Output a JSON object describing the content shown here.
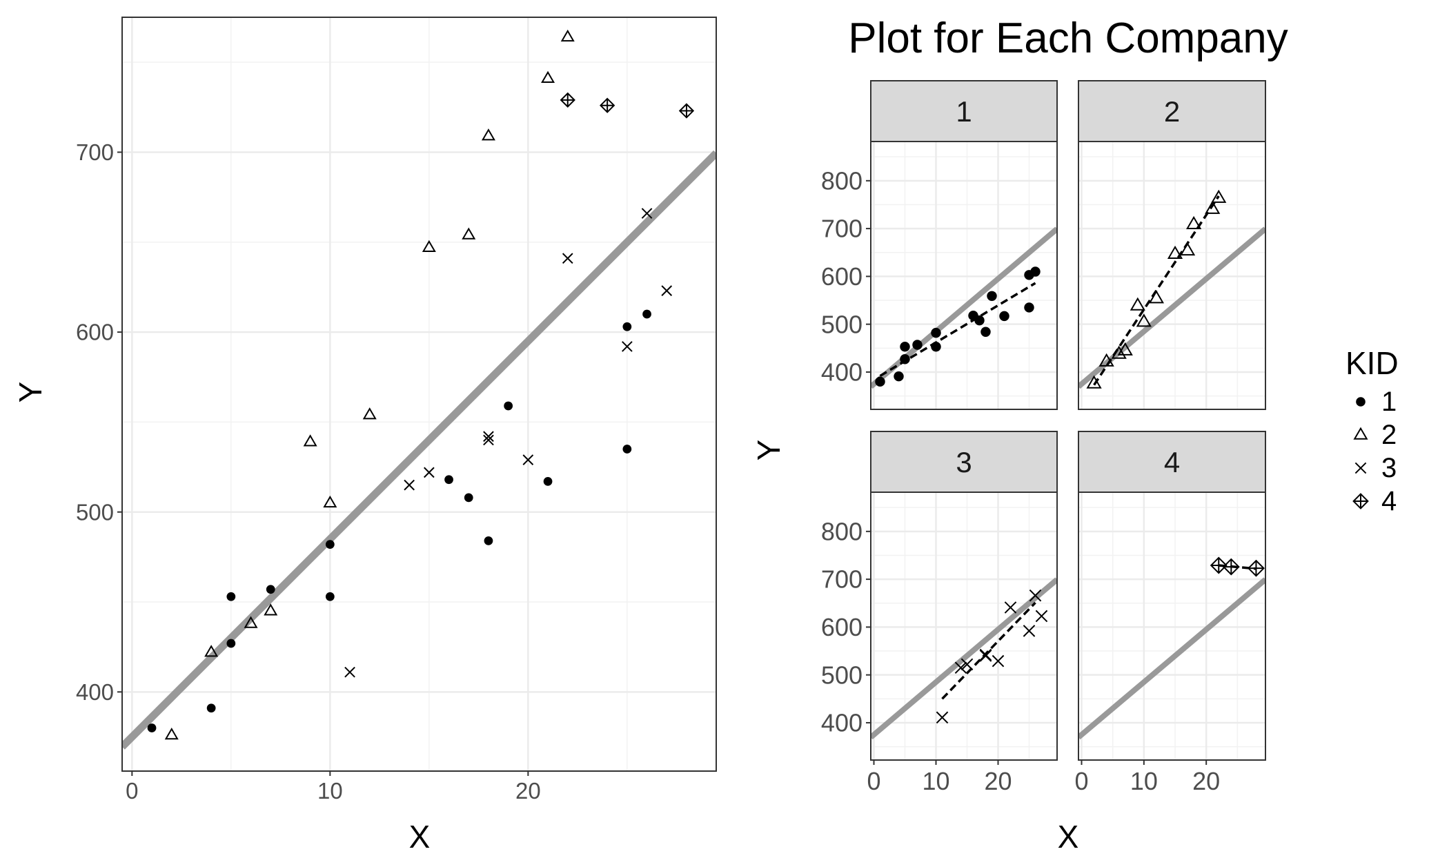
{
  "chart_data": [
    {
      "type": "scatter",
      "title": "",
      "xlabel": "X",
      "ylabel": "Y",
      "xlim": [
        -0.5,
        29.5
      ],
      "ylim": [
        356,
        775
      ],
      "x_ticks": [
        0,
        10,
        20
      ],
      "y_ticks": [
        400,
        500,
        600,
        700
      ],
      "grid": true,
      "reference_line": {
        "intercept": 375,
        "slope": 11,
        "color": "#999999"
      },
      "series": [
        {
          "name": "1",
          "marker": "circle",
          "points": [
            [
              1,
              380
            ],
            [
              4,
              391
            ],
            [
              5,
              427
            ],
            [
              5,
              453
            ],
            [
              7,
              457
            ],
            [
              10,
              453
            ],
            [
              10,
              482
            ],
            [
              16,
              518
            ],
            [
              17,
              508
            ],
            [
              18,
              484
            ],
            [
              19,
              559
            ],
            [
              21,
              517
            ],
            [
              25,
              535
            ],
            [
              25,
              603
            ],
            [
              26,
              610
            ]
          ]
        },
        {
          "name": "2",
          "marker": "triangle",
          "points": [
            [
              2,
              376
            ],
            [
              4,
              422
            ],
            [
              6,
              438
            ],
            [
              7,
              445
            ],
            [
              9,
              539
            ],
            [
              10,
              505
            ],
            [
              12,
              554
            ],
            [
              15,
              647
            ],
            [
              17,
              654
            ],
            [
              18,
              709
            ],
            [
              21,
              741
            ],
            [
              22,
              764
            ]
          ]
        },
        {
          "name": "3",
          "marker": "x",
          "points": [
            [
              11,
              411
            ],
            [
              14,
              515
            ],
            [
              15,
              522
            ],
            [
              18,
              540
            ],
            [
              18,
              542
            ],
            [
              20,
              529
            ],
            [
              22,
              641
            ],
            [
              25,
              592
            ],
            [
              26,
              666
            ],
            [
              27,
              623
            ]
          ]
        },
        {
          "name": "4",
          "marker": "crossed-diamond",
          "points": [
            [
              22,
              729
            ],
            [
              24,
              726
            ],
            [
              28,
              723
            ]
          ]
        }
      ]
    },
    {
      "type": "scatter",
      "title": "Plot for Each Company",
      "xlabel": "X",
      "ylabel": "Y",
      "xlim": [
        -0.5,
        29.5
      ],
      "ylim": [
        322,
        882
      ],
      "x_ticks": [
        0,
        10,
        20
      ],
      "y_ticks": [
        400,
        500,
        600,
        700,
        800
      ],
      "grid": true,
      "facets": [
        {
          "label": "1",
          "marker": "circle",
          "fit_line": {
            "x": [
              1,
              26
            ],
            "y": [
              392,
              586
            ]
          },
          "points": [
            [
              1,
              380
            ],
            [
              4,
              391
            ],
            [
              5,
              427
            ],
            [
              5,
              453
            ],
            [
              7,
              457
            ],
            [
              10,
              453
            ],
            [
              10,
              482
            ],
            [
              16,
              518
            ],
            [
              17,
              508
            ],
            [
              18,
              484
            ],
            [
              19,
              559
            ],
            [
              21,
              517
            ],
            [
              25,
              535
            ],
            [
              25,
              603
            ],
            [
              26,
              610
            ]
          ]
        },
        {
          "label": "2",
          "marker": "triangle",
          "fit_line": {
            "x": [
              2,
              22
            ],
            "y": [
              373,
              768
            ]
          },
          "points": [
            [
              2,
              376
            ],
            [
              4,
              422
            ],
            [
              6,
              438
            ],
            [
              7,
              445
            ],
            [
              9,
              539
            ],
            [
              10,
              505
            ],
            [
              12,
              554
            ],
            [
              15,
              647
            ],
            [
              17,
              654
            ],
            [
              18,
              709
            ],
            [
              21,
              741
            ],
            [
              22,
              764
            ]
          ]
        },
        {
          "label": "3",
          "marker": "x",
          "fit_line": {
            "x": [
              11,
              26
            ],
            "y": [
              450,
              651
            ]
          },
          "points": [
            [
              11,
              411
            ],
            [
              14,
              515
            ],
            [
              15,
              522
            ],
            [
              18,
              540
            ],
            [
              18,
              542
            ],
            [
              20,
              529
            ],
            [
              22,
              641
            ],
            [
              25,
              592
            ],
            [
              26,
              666
            ],
            [
              27,
              623
            ]
          ]
        },
        {
          "label": "4",
          "marker": "crossed-diamond",
          "fit_line": {
            "x": [
              22,
              28
            ],
            "y": [
              729,
              722
            ]
          },
          "points": [
            [
              22,
              729
            ],
            [
              24,
              726
            ],
            [
              28,
              723
            ]
          ]
        }
      ],
      "reference_line": {
        "intercept": 375,
        "slope": 11,
        "color": "#999999"
      }
    }
  ],
  "legend": {
    "title": "KID",
    "items": [
      "1",
      "2",
      "3",
      "4"
    ],
    "placement": "right"
  }
}
